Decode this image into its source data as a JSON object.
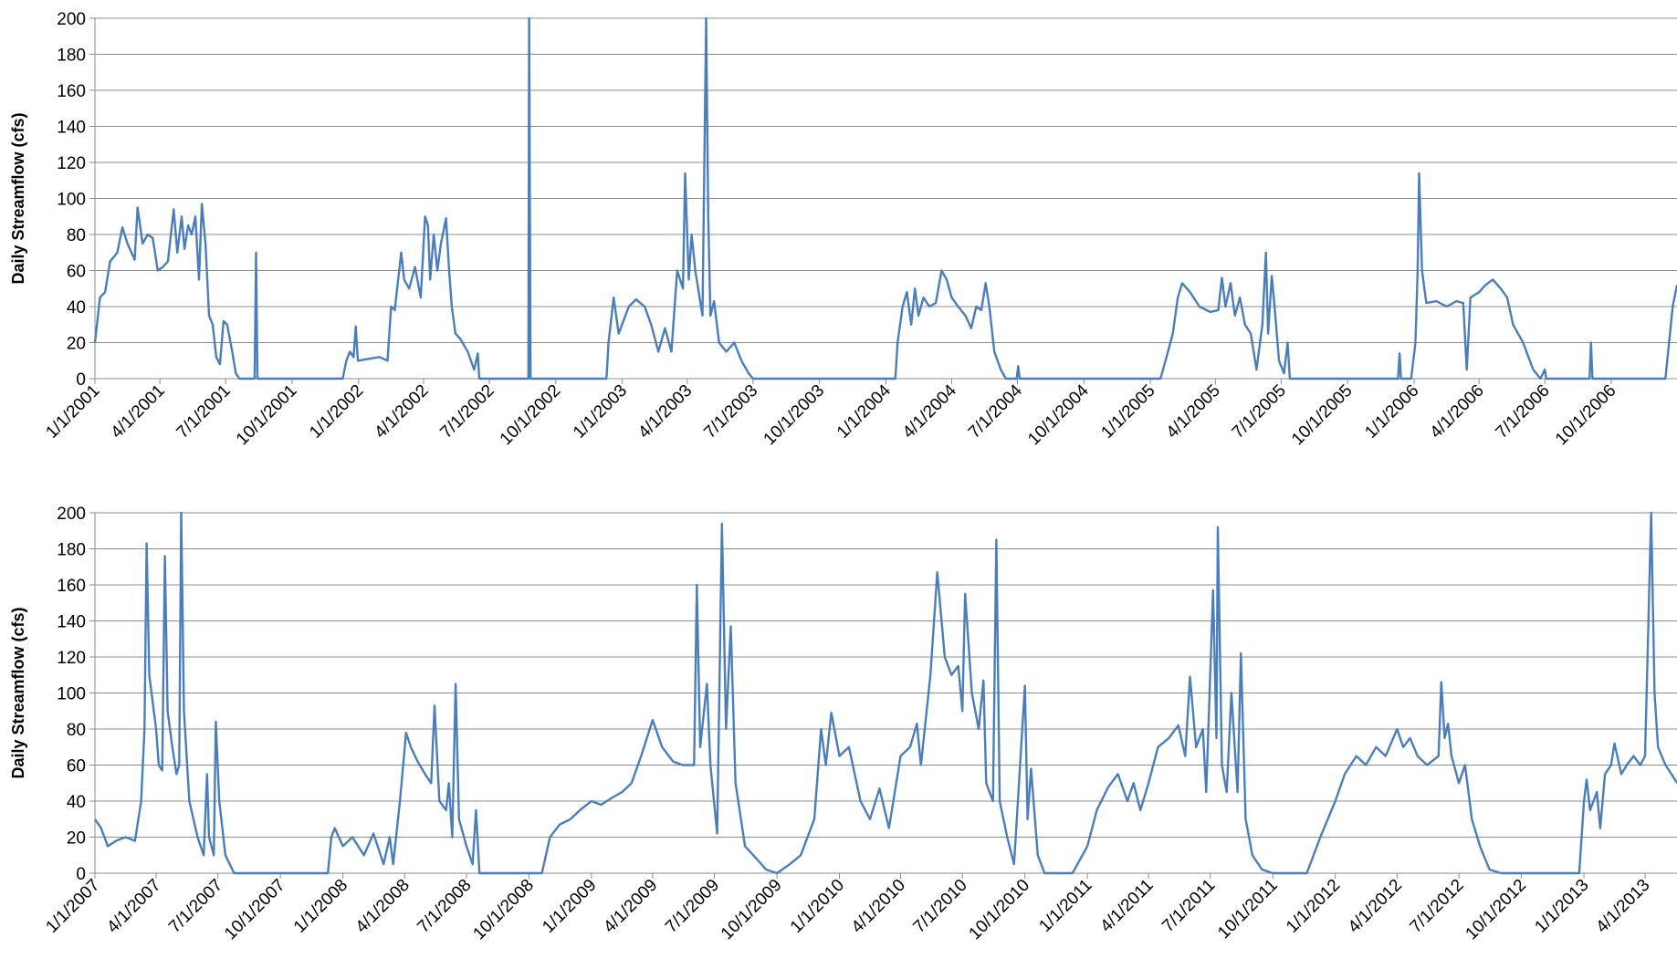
{
  "chart_data": [
    {
      "type": "line",
      "ylabel": "Daily Streamflow (cfs)",
      "color": "#4a7ebb",
      "ylim": [
        0,
        200
      ],
      "yticks": [
        0,
        20,
        40,
        60,
        80,
        100,
        120,
        140,
        160,
        180,
        200
      ],
      "grid": true,
      "xlim": [
        "1/1/2001",
        "12/31/2006"
      ],
      "xticks": [
        "1/1/2001",
        "4/1/2001",
        "7/1/2001",
        "10/1/2001",
        "1/1/2002",
        "4/1/2002",
        "7/1/2002",
        "10/1/2002",
        "1/1/2003",
        "4/1/2003",
        "7/1/2003",
        "10/1/2003",
        "1/1/2004",
        "4/1/2004",
        "7/1/2004",
        "10/1/2004",
        "1/1/2005",
        "4/1/2005",
        "7/1/2005",
        "10/1/2005",
        "1/1/2006",
        "4/1/2006",
        "7/1/2006",
        "10/1/2006"
      ],
      "x": [
        "1/1/2001",
        "1/8/2001",
        "1/15/2001",
        "1/22/2001",
        "2/1/2001",
        "2/8/2001",
        "2/15/2001",
        "2/25/2001",
        "3/1/2001",
        "3/8/2001",
        "3/15/2001",
        "3/22/2001",
        "3/29/2001",
        "4/5/2001",
        "4/12/2001",
        "4/20/2001",
        "4/25/2001",
        "5/1/2001",
        "5/5/2001",
        "5/10/2001",
        "5/15/2001",
        "5/20/2001",
        "5/25/2001",
        "5/29/2001",
        "6/3/2001",
        "6/8/2001",
        "6/13/2001",
        "6/18/2001",
        "6/23/2001",
        "6/28/2001",
        "7/3/2001",
        "7/10/2001",
        "7/15/2001",
        "7/20/2001",
        "8/10/2001",
        "8/12/2001",
        "8/14/2001",
        "12/10/2001",
        "12/15/2001",
        "12/20/2001",
        "12/25/2001",
        "12/28/2001",
        "12/31/2001",
        "1/15/2002",
        "1/30/2002",
        "2/10/2002",
        "2/15/2002",
        "2/20/2002",
        "3/1/2002",
        "3/5/2002",
        "3/12/2002",
        "3/20/2002",
        "3/28/2002",
        "4/3/2002",
        "4/7/2002",
        "4/10/2002",
        "4/15/2002",
        "4/20/2002",
        "4/25/2002",
        "5/2/2002",
        "5/6/2002",
        "5/10/2002",
        "5/15/2002",
        "5/22/2002",
        "6/1/2002",
        "6/10/2002",
        "6/15/2002",
        "6/17/2002",
        "8/24/2002",
        "8/25/2002",
        "8/27/2002",
        "12/10/2002",
        "12/13/2002",
        "12/20/2002",
        "12/27/2002",
        "1/10/2003",
        "1/20/2003",
        "2/1/2003",
        "2/10/2003",
        "2/20/2003",
        "3/1/2003",
        "3/10/2003",
        "3/18/2003",
        "3/26/2003",
        "3/29/2003",
        "4/3/2003",
        "4/7/2003",
        "4/12/2003",
        "4/18/2003",
        "4/22/2003",
        "4/27/2003",
        "4/30/2003",
        "5/3/2003",
        "5/8/2003",
        "5/15/2003",
        "5/25/2003",
        "6/5/2003",
        "6/15/2003",
        "6/25/2003",
        "7/1/2003",
        "1/14/2004",
        "1/17/2004",
        "1/24/2004",
        "1/30/2004",
        "2/5/2004",
        "2/10/2004",
        "2/15/2004",
        "2/22/2004",
        "3/1/2004",
        "3/10/2004",
        "3/18/2004",
        "3/25/2004",
        "4/1/2004",
        "4/10/2004",
        "4/20/2004",
        "4/28/2004",
        "5/5/2004",
        "5/12/2004",
        "5/18/2004",
        "5/23/2004",
        "5/30/2004",
        "6/8/2004",
        "6/15/2004",
        "6/30/2004",
        "7/2/2004",
        "7/4/2004",
        "1/15/2005",
        "1/22/2005",
        "2/1/2005",
        "2/8/2005",
        "2/14/2005",
        "2/25/2005",
        "3/10/2005",
        "3/25/2005",
        "4/5/2005",
        "4/10/2005",
        "4/15/2005",
        "4/22/2005",
        "4/28/2005",
        "5/5/2005",
        "5/12/2005",
        "5/20/2005",
        "5/28/2005",
        "6/5/2005",
        "6/10/2005",
        "6/13/2005",
        "6/18/2005",
        "6/22/2005",
        "6/28/2005",
        "7/5/2005",
        "7/10/2005",
        "7/13/2005",
        "12/10/2005",
        "12/12/2005",
        "12/14/2005",
        "12/28/2005",
        "1/3/2006",
        "1/6/2006",
        "1/8/2006",
        "1/12/2006",
        "1/18/2006",
        "2/1/2006",
        "2/15/2006",
        "3/1/2006",
        "3/10/2006",
        "3/15/2006",
        "3/20/2006",
        "4/1/2006",
        "4/10/2006",
        "4/20/2006",
        "5/1/2006",
        "5/10/2006",
        "5/18/2006",
        "6/1/2006",
        "6/15/2006",
        "6/25/2006",
        "7/1/2006",
        "7/3/2006",
        "9/1/2006",
        "9/3/2006",
        "9/5/2006",
        "12/15/2006",
        "12/20/2006",
        "12/25/2006",
        "12/31/2006"
      ],
      "values": [
        20,
        45,
        48,
        65,
        70,
        84,
        75,
        66,
        95,
        75,
        80,
        78,
        60,
        62,
        65,
        94,
        70,
        90,
        72,
        85,
        80,
        90,
        55,
        97,
        75,
        35,
        30,
        12,
        8,
        32,
        30,
        15,
        3,
        0,
        0,
        70,
        0,
        0,
        10,
        15,
        12,
        29,
        10,
        11,
        12,
        10,
        40,
        38,
        70,
        55,
        50,
        62,
        45,
        90,
        85,
        55,
        80,
        60,
        75,
        89,
        62,
        40,
        25,
        22,
        15,
        5,
        14,
        0,
        0,
        200,
        0,
        0,
        20,
        45,
        25,
        40,
        44,
        40,
        30,
        15,
        28,
        15,
        60,
        50,
        114,
        55,
        80,
        60,
        45,
        35,
        200,
        90,
        35,
        43,
        20,
        15,
        20,
        10,
        3,
        0,
        0,
        20,
        40,
        48,
        30,
        50,
        35,
        45,
        40,
        42,
        60,
        55,
        45,
        40,
        35,
        28,
        40,
        38,
        53,
        40,
        15,
        5,
        0,
        0,
        7,
        0,
        0,
        10,
        25,
        45,
        53,
        48,
        40,
        37,
        38,
        56,
        40,
        53,
        35,
        45,
        30,
        25,
        5,
        30,
        70,
        25,
        57,
        40,
        10,
        3,
        20,
        0,
        0,
        14,
        0,
        0,
        20,
        60,
        114,
        60,
        42,
        43,
        40,
        43,
        42,
        5,
        45,
        48,
        52,
        55,
        50,
        45,
        30,
        20,
        5,
        0,
        5,
        0,
        0,
        20,
        0,
        0,
        20,
        40,
        52
      ]
    },
    {
      "type": "line",
      "ylabel": "Daily Streamflow (cfs)",
      "color": "#4a7ebb",
      "ylim": [
        0,
        200
      ],
      "yticks": [
        0,
        20,
        40,
        60,
        80,
        100,
        120,
        140,
        160,
        180,
        200
      ],
      "grid": true,
      "xlim": [
        "1/1/2007",
        "5/18/2013"
      ],
      "xticks": [
        "1/1/2007",
        "4/1/2007",
        "7/1/2007",
        "10/1/2007",
        "1/1/2008",
        "4/1/2008",
        "7/1/2008",
        "10/1/2008",
        "1/1/2009",
        "4/1/2009",
        "7/1/2009",
        "10/1/2009",
        "1/1/2010",
        "4/1/2010",
        "7/1/2010",
        "10/1/2010",
        "1/1/2011",
        "4/1/2011",
        "7/1/2011",
        "10/1/2011",
        "1/1/2012",
        "4/1/2012",
        "7/1/2012",
        "10/1/2012",
        "1/1/2013",
        "4/1/2013"
      ],
      "x": [
        "1/1/2007",
        "1/10/2007",
        "1/20/2007",
        "2/1/2007",
        "2/15/2007",
        "3/1/2007",
        "3/10/2007",
        "3/15/2007",
        "3/18/2007",
        "3/22/2007",
        "4/1/2007",
        "4/5/2007",
        "4/10/2007",
        "4/14/2007",
        "4/18/2007",
        "4/25/2007",
        "5/1/2007",
        "5/5/2007",
        "5/8/2007",
        "5/12/2007",
        "5/20/2007",
        "6/1/2007",
        "6/10/2007",
        "6/15/2007",
        "6/18/2007",
        "6/25/2007",
        "6/28/2007",
        "7/3/2007",
        "7/12/2007",
        "7/25/2007",
        "12/10/2007",
        "12/15/2007",
        "12/20/2007",
        "1/1/2008",
        "1/15/2008",
        "2/1/2008",
        "2/15/2008",
        "3/1/2008",
        "3/10/2008",
        "3/15/2008",
        "3/25/2008",
        "4/3/2008",
        "4/10/2008",
        "4/20/2008",
        "5/1/2008",
        "5/10/2008",
        "5/15/2008",
        "5/22/2008",
        "6/1/2008",
        "6/5/2008",
        "6/10/2008",
        "6/15/2008",
        "6/20/2008",
        "7/1/2008",
        "7/10/2008",
        "7/15/2008",
        "7/20/2008",
        "10/20/2008",
        "11/1/2008",
        "11/15/2008",
        "12/1/2008",
        "12/15/2008",
        "1/1/2009",
        "1/15/2009",
        "2/1/2009",
        "2/15/2009",
        "3/1/2009",
        "3/15/2009",
        "4/1/2009",
        "4/15/2009",
        "5/1/2009",
        "5/15/2009",
        "6/1/2009",
        "6/5/2009",
        "6/10/2009",
        "6/20/2009",
        "6/25/2009",
        "7/5/2009",
        "7/12/2009",
        "7/18/2009",
        "7/25/2009",
        "8/1/2009",
        "8/15/2009",
        "9/1/2009",
        "9/15/2009",
        "10/1/2009",
        "10/20/2009",
        "11/5/2009",
        "11/25/2009",
        "12/5/2009",
        "12/12/2009",
        "12/20/2009",
        "1/1/2010",
        "1/15/2010",
        "2/1/2010",
        "2/15/2010",
        "3/1/2010",
        "3/15/2010",
        "4/1/2010",
        "4/15/2010",
        "4/25/2010",
        "5/1/2010",
        "5/15/2010",
        "5/25/2010",
        "6/5/2010",
        "6/15/2010",
        "6/25/2010",
        "7/1/2010",
        "7/5/2010",
        "7/15/2010",
        "7/25/2010",
        "8/1/2010",
        "8/5/2010",
        "8/15/2010",
        "8/20/2010",
        "8/25/2010",
        "9/5/2010",
        "9/15/2010",
        "10/1/2010",
        "10/5/2010",
        "10/10/2010",
        "10/20/2010",
        "10/30/2010",
        "12/10/2010",
        "1/1/2011",
        "1/15/2011",
        "2/1/2011",
        "2/15/2011",
        "3/1/2011",
        "3/10/2011",
        "3/20/2011",
        "4/1/2011",
        "4/15/2011",
        "5/1/2011",
        "5/15/2011",
        "5/25/2011",
        "6/1/2011",
        "6/10/2011",
        "6/20/2011",
        "6/25/2011",
        "7/5/2011",
        "7/10/2011",
        "7/12/2011",
        "7/18/2011",
        "7/25/2011",
        "8/1/2011",
        "8/10/2011",
        "8/15/2011",
        "8/22/2011",
        "9/1/2011",
        "9/15/2011",
        "10/1/2011",
        "11/20/2011",
        "12/10/2011",
        "1/1/2012",
        "1/15/2012",
        "2/1/2012",
        "2/15/2012",
        "3/1/2012",
        "3/15/2012",
        "4/1/2012",
        "4/10/2012",
        "4/20/2012",
        "5/1/2012",
        "5/15/2012",
        "6/1/2012",
        "6/5/2012",
        "6/10/2012",
        "6/15/2012",
        "6/20/2012",
        "7/1/2012",
        "7/10/2012",
        "7/20/2012",
        "8/1/2012",
        "8/15/2012",
        "9/1/2012",
        "12/25/2012",
        "1/1/2013",
        "1/5/2013",
        "1/10/2013",
        "1/20/2013",
        "1/25/2013",
        "2/1/2013",
        "2/10/2013",
        "2/15/2013",
        "2/25/2013",
        "3/5/2013",
        "3/15/2013",
        "3/25/2013",
        "4/1/2013",
        "4/10/2013",
        "4/15/2013",
        "4/20/2013",
        "5/1/2013",
        "5/10/2013",
        "5/18/2013"
      ],
      "values": [
        30,
        25,
        15,
        18,
        20,
        18,
        40,
        80,
        183,
        110,
        80,
        60,
        57,
        176,
        90,
        70,
        55,
        60,
        200,
        90,
        40,
        20,
        10,
        55,
        20,
        10,
        84,
        40,
        10,
        0,
        0,
        20,
        25,
        15,
        20,
        10,
        22,
        5,
        20,
        5,
        40,
        78,
        70,
        62,
        55,
        50,
        93,
        40,
        35,
        50,
        20,
        105,
        30,
        15,
        5,
        35,
        0,
        0,
        20,
        27,
        30,
        35,
        40,
        38,
        42,
        45,
        50,
        65,
        85,
        70,
        62,
        60,
        60,
        160,
        70,
        105,
        60,
        22,
        194,
        80,
        137,
        50,
        15,
        8,
        2,
        0,
        5,
        10,
        30,
        80,
        60,
        89,
        65,
        70,
        40,
        30,
        47,
        25,
        65,
        70,
        83,
        60,
        110,
        167,
        120,
        110,
        115,
        90,
        155,
        100,
        80,
        107,
        50,
        40,
        185,
        40,
        20,
        5,
        104,
        30,
        58,
        10,
        0,
        0,
        15,
        35,
        48,
        55,
        40,
        50,
        35,
        50,
        70,
        75,
        82,
        65,
        109,
        70,
        80,
        45,
        157,
        75,
        192,
        60,
        45,
        100,
        45,
        122,
        30,
        10,
        2,
        0,
        0,
        20,
        40,
        55,
        65,
        60,
        70,
        65,
        80,
        70,
        75,
        65,
        60,
        65,
        106,
        75,
        83,
        65,
        50,
        60,
        30,
        15,
        2,
        0,
        0,
        40,
        52,
        35,
        45,
        25,
        55,
        60,
        72,
        55,
        60,
        65,
        60,
        65,
        200,
        100,
        70,
        60,
        55,
        50
      ]
    }
  ]
}
